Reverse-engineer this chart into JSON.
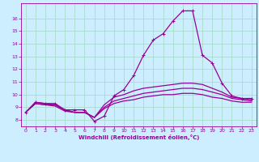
{
  "background_color": "#cceeff",
  "grid_color": "#aaddcc",
  "line_color": "#990099",
  "xlabel": "Windchill (Refroidissement éolien,°C)",
  "xlim": [
    -0.5,
    23.5
  ],
  "ylim": [
    7.5,
    17.2
  ],
  "yticks": [
    8,
    9,
    10,
    11,
    12,
    13,
    14,
    15,
    16
  ],
  "xticks": [
    0,
    1,
    2,
    3,
    4,
    5,
    6,
    7,
    8,
    9,
    10,
    11,
    12,
    13,
    14,
    15,
    16,
    17,
    18,
    19,
    20,
    21,
    22,
    23
  ],
  "series": [
    {
      "x": [
        0,
        1,
        2,
        3,
        4,
        5,
        6,
        7,
        8,
        9,
        10,
        11,
        12,
        13,
        14,
        15,
        16,
        17,
        18,
        19,
        20,
        21,
        22,
        23
      ],
      "y": [
        8.6,
        9.4,
        9.3,
        9.3,
        8.8,
        8.8,
        8.8,
        7.9,
        8.3,
        9.9,
        10.4,
        11.5,
        13.1,
        14.3,
        14.8,
        15.8,
        16.6,
        16.6,
        13.1,
        12.5,
        10.9,
        9.9,
        9.7,
        9.7
      ],
      "marker": true
    },
    {
      "x": [
        0,
        1,
        2,
        3,
        4,
        5,
        6,
        7,
        8,
        9,
        10,
        11,
        12,
        13,
        14,
        15,
        16,
        17,
        18,
        19,
        20,
        21,
        22,
        23
      ],
      "y": [
        8.6,
        9.4,
        9.3,
        9.2,
        8.8,
        8.6,
        8.6,
        8.2,
        9.2,
        9.8,
        10.0,
        10.3,
        10.5,
        10.6,
        10.7,
        10.8,
        10.9,
        10.9,
        10.8,
        10.5,
        10.2,
        9.8,
        9.7,
        9.6
      ],
      "marker": false
    },
    {
      "x": [
        0,
        1,
        2,
        3,
        4,
        5,
        6,
        7,
        8,
        9,
        10,
        11,
        12,
        13,
        14,
        15,
        16,
        17,
        18,
        19,
        20,
        21,
        22,
        23
      ],
      "y": [
        8.6,
        9.3,
        9.2,
        9.2,
        8.8,
        8.6,
        8.6,
        8.2,
        9.0,
        9.5,
        9.7,
        9.9,
        10.1,
        10.2,
        10.3,
        10.4,
        10.5,
        10.5,
        10.4,
        10.2,
        10.0,
        9.7,
        9.6,
        9.5
      ],
      "marker": false
    },
    {
      "x": [
        0,
        1,
        2,
        3,
        4,
        5,
        6,
        7,
        8,
        9,
        10,
        11,
        12,
        13,
        14,
        15,
        16,
        17,
        18,
        19,
        20,
        21,
        22,
        23
      ],
      "y": [
        8.6,
        9.3,
        9.2,
        9.1,
        8.7,
        8.6,
        8.6,
        8.2,
        8.9,
        9.3,
        9.5,
        9.6,
        9.8,
        9.9,
        10.0,
        10.0,
        10.1,
        10.1,
        10.0,
        9.8,
        9.7,
        9.5,
        9.4,
        9.4
      ],
      "marker": false
    }
  ]
}
